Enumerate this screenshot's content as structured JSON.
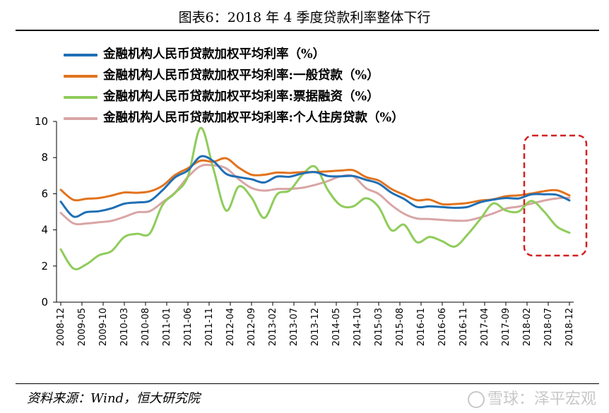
{
  "title": "图表6：2018 年 4 季度贷款利率整体下行",
  "source": "资料来源：Wind，恒大研究院",
  "watermark": "雪球：泽平宏观",
  "chart_data": {
    "type": "line",
    "title": "图表6：2018 年 4 季度贷款利率整体下行",
    "xlabel": "",
    "ylabel": "",
    "ylim": [
      0,
      10
    ],
    "yticks": [
      0,
      2,
      4,
      6,
      8,
      10
    ],
    "grid": false,
    "legend_position": "top-left",
    "x": [
      "2008-12",
      "2009-03",
      "2009-06",
      "2009-09",
      "2009-12",
      "2010-03",
      "2010-06",
      "2010-09",
      "2010-12",
      "2011-03",
      "2011-06",
      "2011-09",
      "2011-12",
      "2012-03",
      "2012-06",
      "2012-09",
      "2012-12",
      "2013-03",
      "2013-06",
      "2013-09",
      "2013-12",
      "2014-03",
      "2014-06",
      "2014-09",
      "2014-12",
      "2015-03",
      "2015-06",
      "2015-09",
      "2015-12",
      "2016-03",
      "2016-06",
      "2016-09",
      "2016-12",
      "2017-03",
      "2017-06",
      "2017-09",
      "2017-12",
      "2018-03",
      "2018-06",
      "2018-09",
      "2018-12"
    ],
    "xticks": [
      "2008-12",
      "2009-05",
      "2009-10",
      "2010-03",
      "2010-08",
      "2011-01",
      "2011-06",
      "2011-11",
      "2012-04",
      "2012-09",
      "2013-02",
      "2013-07",
      "2013-12",
      "2014-05",
      "2014-10",
      "2015-03",
      "2015-08",
      "2016-01",
      "2016-06",
      "2016-11",
      "2017-04",
      "2017-09",
      "2018-02",
      "2018-07",
      "2018-12"
    ],
    "series": [
      {
        "name": "金融机构人民币贷款加权平均利率（%）",
        "color": "#1f6fb5",
        "values": [
          5.56,
          4.74,
          4.98,
          5.03,
          5.19,
          5.45,
          5.52,
          5.6,
          6.19,
          6.91,
          7.29,
          8.06,
          7.8,
          7.1,
          6.92,
          6.8,
          6.62,
          6.95,
          6.94,
          7.12,
          7.2,
          6.98,
          6.96,
          6.98,
          6.77,
          6.56,
          6.06,
          5.71,
          5.27,
          5.3,
          5.26,
          5.22,
          5.27,
          5.53,
          5.67,
          5.76,
          5.74,
          5.96,
          5.97,
          5.94,
          5.63
        ]
      },
      {
        "name": "金融机构人民币贷款加权平均利率:一般贷款（%）",
        "color": "#e2731d",
        "values": [
          6.22,
          5.66,
          5.72,
          5.76,
          5.9,
          6.07,
          6.05,
          6.13,
          6.44,
          7.04,
          7.41,
          7.83,
          7.77,
          7.96,
          7.44,
          7.05,
          7.05,
          7.17,
          7.15,
          7.2,
          7.2,
          7.24,
          7.28,
          7.3,
          6.92,
          6.73,
          6.26,
          5.94,
          5.64,
          5.67,
          5.42,
          5.43,
          5.49,
          5.62,
          5.69,
          5.86,
          5.91,
          6.01,
          6.14,
          6.19,
          5.91
        ]
      },
      {
        "name": "金融机构人民币贷款加权平均利率:票据融资（%）",
        "color": "#8fcc5a",
        "values": [
          2.92,
          1.86,
          2.09,
          2.59,
          2.83,
          3.61,
          3.78,
          3.8,
          5.38,
          6.05,
          6.96,
          9.64,
          7.38,
          5.07,
          6.4,
          5.79,
          4.66,
          5.96,
          6.18,
          7.05,
          7.5,
          6.21,
          5.36,
          5.3,
          5.75,
          5.26,
          3.98,
          4.28,
          3.32,
          3.61,
          3.37,
          3.08,
          3.75,
          4.6,
          5.46,
          5.07,
          5.01,
          5.6,
          5.02,
          4.19,
          3.84
        ]
      },
      {
        "name": "金融机构人民币贷款加权平均利率:个人住房贷款（%）",
        "color": "#d9a5a5",
        "values": [
          4.94,
          4.36,
          4.35,
          4.42,
          4.5,
          4.72,
          4.97,
          5.03,
          5.53,
          6.08,
          6.93,
          7.53,
          7.57,
          7.41,
          6.8,
          6.32,
          6.17,
          6.26,
          6.27,
          6.33,
          6.49,
          6.7,
          6.96,
          6.97,
          6.31,
          5.99,
          5.37,
          4.89,
          4.63,
          4.6,
          4.55,
          4.51,
          4.52,
          4.69,
          4.91,
          5.18,
          5.29,
          5.45,
          5.62,
          5.74,
          5.78
        ]
      }
    ],
    "annotation": {
      "type": "dashed-box",
      "color": "#d42020",
      "x_range": [
        "2018-02",
        "2018-12"
      ]
    }
  }
}
